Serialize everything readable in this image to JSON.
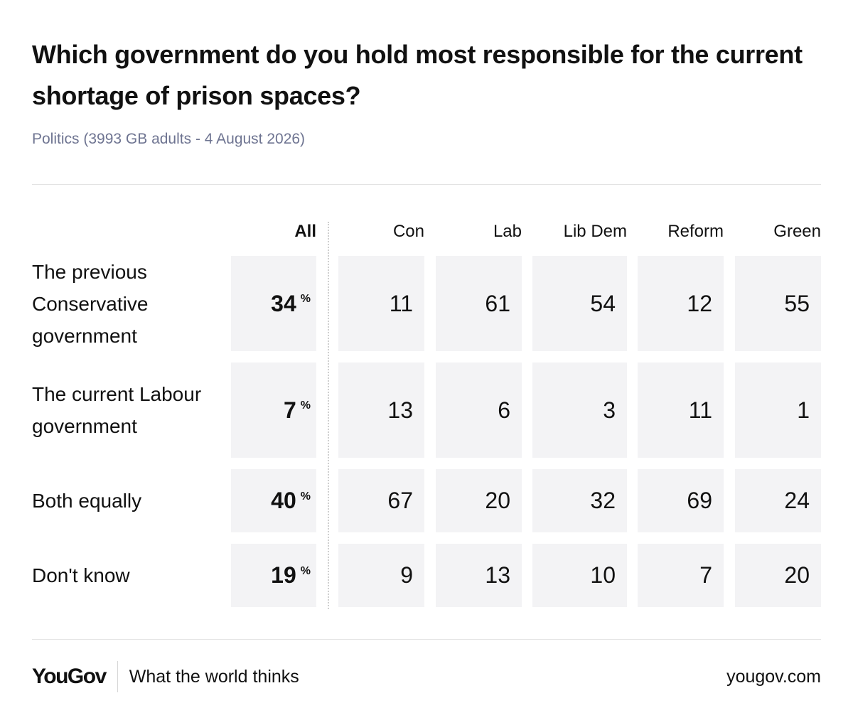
{
  "chart_data": {
    "type": "table",
    "title": "Which government do you hold most responsible for the current shortage of prison spaces?",
    "subtitle": "Politics (3993 GB adults - 4 August 2026)",
    "columns": [
      "All",
      "Con",
      "Lab",
      "Lib Dem",
      "Reform",
      "Green"
    ],
    "percent_symbol": "%",
    "rows": [
      {
        "label": "The previous Conservative government",
        "all": "34",
        "values": [
          "11",
          "61",
          "54",
          "12",
          "55"
        ]
      },
      {
        "label": "The current Labour government",
        "all": "7",
        "values": [
          "13",
          "6",
          "3",
          "11",
          "1"
        ]
      },
      {
        "label": "Both equally",
        "all": "40",
        "values": [
          "67",
          "20",
          "32",
          "69",
          "24"
        ]
      },
      {
        "label": "Don't know",
        "all": "19",
        "values": [
          "9",
          "13",
          "10",
          "7",
          "20"
        ]
      }
    ]
  },
  "footer": {
    "logo": "YouGov",
    "tagline": "What the world thinks",
    "site": "yougov.com"
  }
}
